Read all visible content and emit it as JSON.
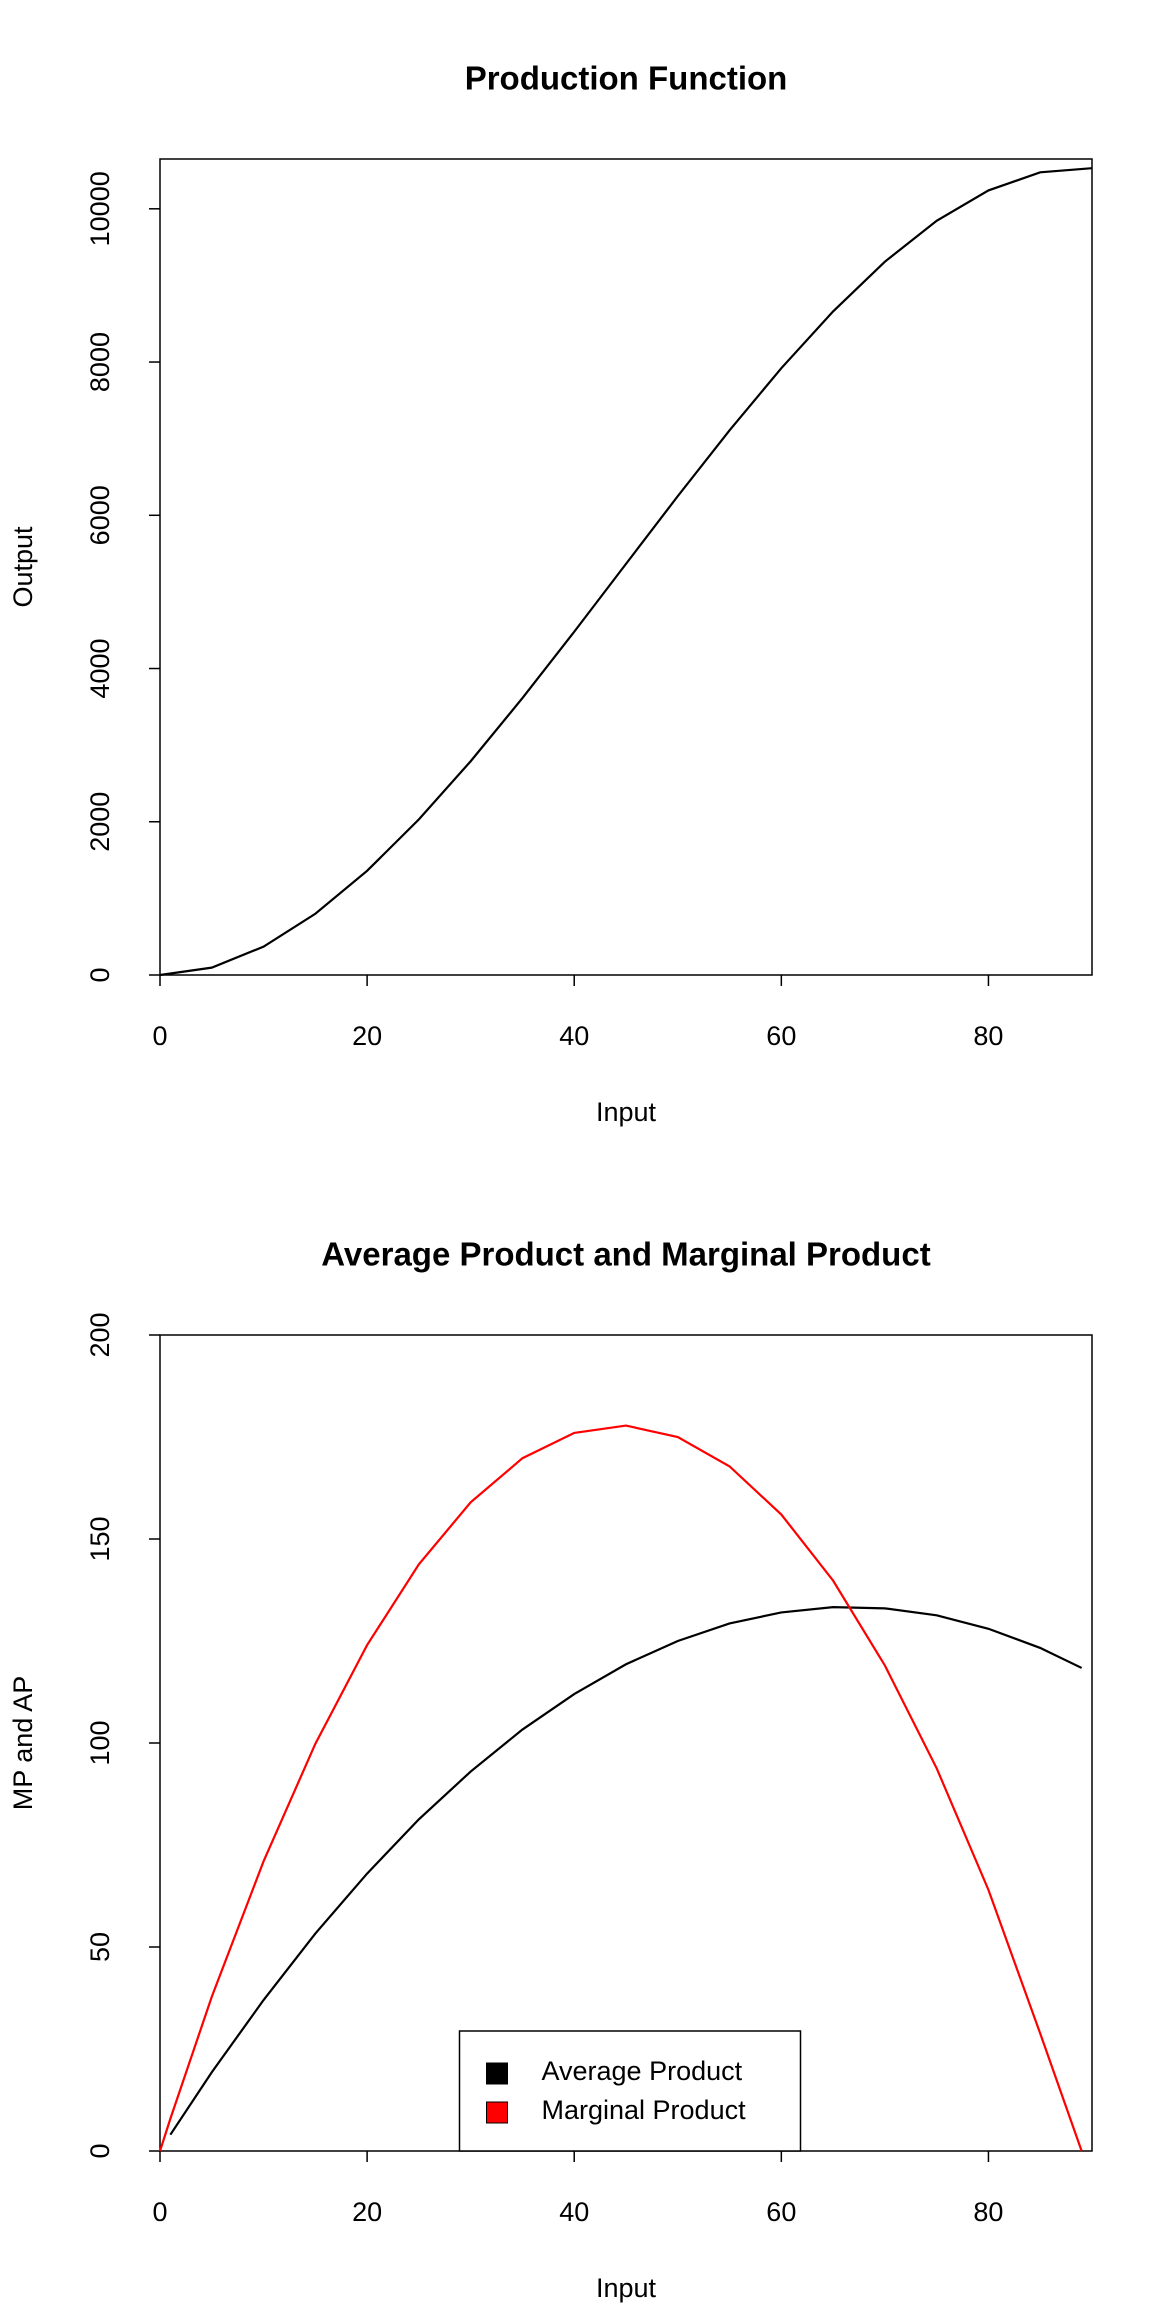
{
  "chart_data": [
    {
      "type": "line",
      "title": "Production Function",
      "xlabel": "Input",
      "ylabel": "Output",
      "x": [
        0,
        5,
        10,
        15,
        20,
        25,
        30,
        35,
        40,
        45,
        50,
        55,
        60,
        65,
        70,
        75,
        80,
        85,
        90
      ],
      "values": [
        0,
        96,
        370,
        799,
        1360,
        2031,
        2790,
        3614,
        4480,
        5366,
        6250,
        7109,
        7920,
        8661,
        9310,
        9844,
        10240,
        10476,
        10530
      ],
      "color": "#000000",
      "xlim": [
        0,
        90
      ],
      "xticks": [
        0,
        20,
        40,
        60,
        80
      ],
      "ylim": [
        0,
        10650
      ],
      "yticks": [
        0,
        2000,
        4000,
        6000,
        8000,
        10000
      ]
    },
    {
      "type": "line",
      "title": "Average Product and Marginal Product",
      "xlabel": "Input",
      "ylabel": "MP and AP",
      "x": [
        0,
        1,
        5,
        10,
        15,
        20,
        25,
        30,
        35,
        40,
        45,
        50,
        55,
        60,
        65,
        70,
        75,
        80,
        85,
        89
      ],
      "series": [
        {
          "name": "Average Product",
          "color": "#000000",
          "values": [
            null,
            4,
            19.3,
            37,
            53.3,
            68,
            81.3,
            93,
            103.3,
            112,
            119.3,
            125,
            129.3,
            132,
            133.3,
            133,
            131.3,
            128,
            123.3,
            118.4
          ]
        },
        {
          "name": "Marginal Product",
          "color": "#ff0000",
          "values": [
            0,
            7.9,
            37.8,
            71,
            99.8,
            124,
            143.8,
            159,
            169.8,
            176,
            177.8,
            175,
            167.8,
            156,
            139.8,
            119,
            93.8,
            64,
            28.8,
            0
          ]
        }
      ],
      "legend": "bottom",
      "xlim": [
        0,
        90
      ],
      "xticks": [
        0,
        20,
        40,
        60,
        80
      ],
      "ylim": [
        0,
        200
      ],
      "yticks": [
        0,
        50,
        100,
        150,
        200
      ]
    }
  ]
}
